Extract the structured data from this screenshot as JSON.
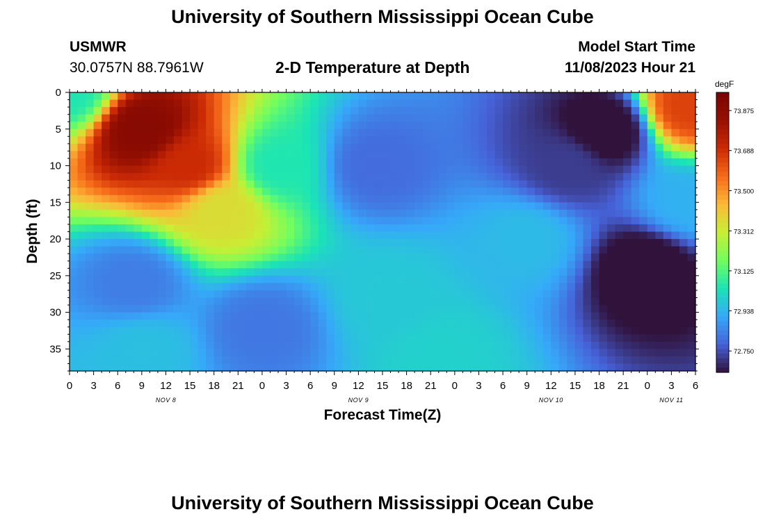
{
  "page": {
    "title": "University of Southern Mississippi Ocean Cube",
    "footer_title": "University of Southern Mississippi Ocean Cube",
    "station": "USMWR",
    "location": "30.0757N  88.7961W",
    "plot_title": "2-D Temperature at Depth",
    "model_start_label": "Model Start Time",
    "model_start_value": "11/08/2023 Hour 21"
  },
  "chart_data": {
    "type": "heatmap",
    "title": "2-D Temperature at Depth",
    "xlabel": "Forecast Time(Z)",
    "ylabel": "Depth (ft)",
    "colorbar_unit": "degF",
    "colorbar_ticks": [
      "73.875",
      "73.688",
      "73.500",
      "73.312",
      "73.125",
      "72.938",
      "72.750"
    ],
    "colorbar_range": [
      72.65,
      73.96
    ],
    "x_hours_range": [
      0,
      78
    ],
    "x_tick_labels": [
      "0",
      "3",
      "6",
      "9",
      "12",
      "15",
      "18",
      "21",
      "0",
      "3",
      "6",
      "9",
      "12",
      "15",
      "18",
      "21",
      "0",
      "3",
      "6",
      "9",
      "12",
      "15",
      "18",
      "21",
      "0",
      "3",
      "6"
    ],
    "day_labels": [
      {
        "text": "NOV 8",
        "hour": 12
      },
      {
        "text": "NOV 9",
        "hour": 36
      },
      {
        "text": "NOV 10",
        "hour": 60
      },
      {
        "text": "NOV 11",
        "hour": 75
      }
    ],
    "y_tick_labels": [
      "0",
      "5",
      "10",
      "15",
      "20",
      "25",
      "30",
      "35"
    ],
    "y_range": [
      0,
      38
    ],
    "temperature_anchors_degF": [
      {
        "hour": 0,
        "depth": 0,
        "temp": 73.05
      },
      {
        "hour": 9,
        "depth": 5,
        "temp": 73.9
      },
      {
        "hour": 15,
        "depth": 10,
        "temp": 73.7
      },
      {
        "hour": 19,
        "depth": 16,
        "temp": 73.35
      },
      {
        "hour": 8,
        "depth": 26,
        "temp": 72.83
      },
      {
        "hour": 9,
        "depth": 35,
        "temp": 72.96
      },
      {
        "hour": 24,
        "depth": 32,
        "temp": 72.82
      },
      {
        "hour": 26,
        "depth": 10,
        "temp": 73.05
      },
      {
        "hour": 38,
        "depth": 10,
        "temp": 72.8
      },
      {
        "hour": 40,
        "depth": 28,
        "temp": 72.98
      },
      {
        "hour": 46,
        "depth": 36,
        "temp": 73.0
      },
      {
        "hour": 57,
        "depth": 20,
        "temp": 72.95
      },
      {
        "hour": 62,
        "depth": 10,
        "temp": 72.72
      },
      {
        "hour": 67,
        "depth": 5,
        "temp": 72.6
      },
      {
        "hour": 72,
        "depth": 24,
        "temp": 72.6
      },
      {
        "hour": 77,
        "depth": 2,
        "temp": 73.65
      },
      {
        "hour": 77,
        "depth": 15,
        "temp": 72.93
      }
    ]
  }
}
